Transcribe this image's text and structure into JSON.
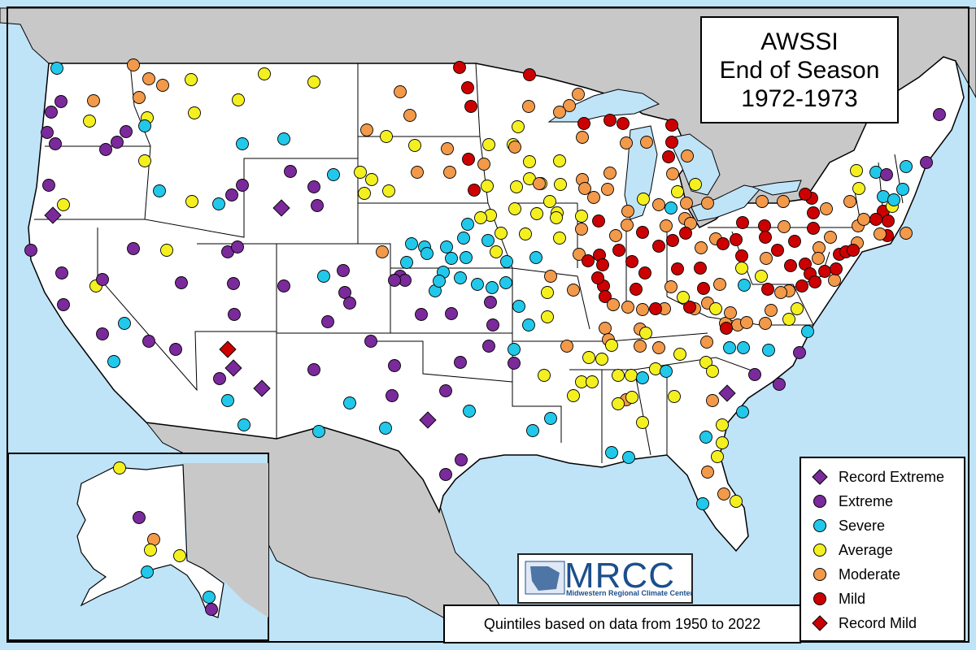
{
  "title": {
    "line1": "AWSSI",
    "line2": "End of Season",
    "line3": "1972-1973"
  },
  "footer": "Quintiles based on data from 1950 to 2022",
  "logo": {
    "name": "MRCC",
    "subtitle": "Midwestern Regional Climate Center"
  },
  "legend": [
    {
      "label": "Record Extreme",
      "category": "record_extreme",
      "shape": "diamond",
      "color": "#7a2a9a"
    },
    {
      "label": "Extreme",
      "category": "extreme",
      "shape": "circle",
      "color": "#7a2a9a"
    },
    {
      "label": "Severe",
      "category": "severe",
      "shape": "circle",
      "color": "#22c8ea"
    },
    {
      "label": "Average",
      "category": "average",
      "shape": "circle",
      "color": "#f4f020"
    },
    {
      "label": "Moderate",
      "category": "moderate",
      "shape": "circle",
      "color": "#f2994a"
    },
    {
      "label": "Mild",
      "category": "mild",
      "shape": "circle",
      "color": "#cc0000"
    },
    {
      "label": "Record Mild",
      "category": "record_mild",
      "shape": "diamond",
      "color": "#cc0000"
    }
  ],
  "colors": {
    "ocean": "#bfe3f7",
    "foreign_land": "#c8c8c8",
    "us_land": "#ffffff",
    "border": "#000000"
  }
}
